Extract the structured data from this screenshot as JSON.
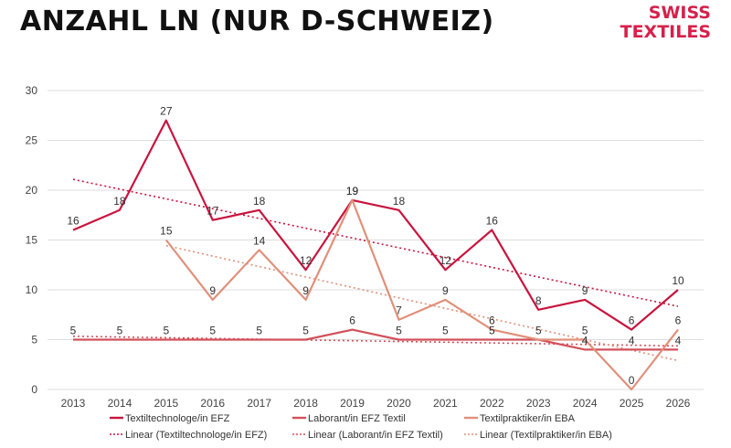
{
  "page": {
    "title": "ANZAHL LN (NUR D-SCHWEIZ)",
    "brand_line1": "SWISS",
    "brand_line2": "TEXTILES",
    "brand_color": "#d6204a"
  },
  "chart_data": {
    "type": "line",
    "title": "",
    "xlabel": "",
    "ylabel": "",
    "ylim": [
      0,
      30
    ],
    "yticks": [
      0,
      5,
      10,
      15,
      20,
      25,
      30
    ],
    "grid": true,
    "legend_position": "bottom",
    "categories": [
      "2013",
      "2014",
      "2015",
      "2016",
      "2017",
      "2018",
      "2019",
      "2020",
      "2021",
      "2022",
      "2023",
      "2024",
      "2025",
      "2026"
    ],
    "series": [
      {
        "name": "Textiltechnologe/in EFZ",
        "color": "#c8143e",
        "values": [
          16,
          18,
          27,
          17,
          18,
          12,
          19,
          18,
          12,
          16,
          8,
          9,
          6,
          10
        ],
        "trend_name": "Linear (Textiltechnologe/in EFZ)"
      },
      {
        "name": "Laborant/in EFZ Textil",
        "color": "#d2505a",
        "values": [
          5,
          5,
          5,
          5,
          5,
          5,
          6,
          5,
          5,
          5,
          5,
          4,
          4,
          4
        ],
        "trend_name": "Linear (Laborant/in EFZ Textil)"
      },
      {
        "name": "Textilpraktiker/in EBA",
        "color": "#e0907a",
        "values": [
          null,
          null,
          15,
          9,
          14,
          9,
          19,
          7,
          9,
          6,
          5,
          5,
          0,
          6
        ],
        "trend_name": "Linear (Textilpraktiker/in EBA)"
      }
    ],
    "data_labels": [
      {
        "text": "16",
        "x": "2013",
        "y": 16
      },
      {
        "text": "18",
        "x": "2014",
        "y": 18
      },
      {
        "text": "27",
        "x": "2015",
        "y": 27
      },
      {
        "text": "17",
        "x": "2016",
        "y": 17
      },
      {
        "text": "18",
        "x": "2017",
        "y": 18
      },
      {
        "text": "12",
        "x": "2018",
        "y": 12
      },
      {
        "text": "19",
        "x": "2019",
        "y": 19
      },
      {
        "text": "18",
        "x": "2020",
        "y": 18
      },
      {
        "text": "12",
        "x": "2021",
        "y": 12
      },
      {
        "text": "16",
        "x": "2022",
        "y": 16
      },
      {
        "text": "8",
        "x": "2023",
        "y": 8
      },
      {
        "text": "9",
        "x": "2024",
        "y": 9
      },
      {
        "text": "6",
        "x": "2025",
        "y": 6
      },
      {
        "text": "10",
        "x": "2026",
        "y": 10
      },
      {
        "text": "5",
        "x": "2013",
        "y": 5
      },
      {
        "text": "5",
        "x": "2014",
        "y": 5
      },
      {
        "text": "5",
        "x": "2015",
        "y": 5
      },
      {
        "text": "5",
        "x": "2016",
        "y": 5
      },
      {
        "text": "5",
        "x": "2017",
        "y": 5
      },
      {
        "text": "5",
        "x": "2018",
        "y": 5
      },
      {
        "text": "6",
        "x": "2019",
        "y": 6
      },
      {
        "text": "5",
        "x": "2020",
        "y": 5
      },
      {
        "text": "5",
        "x": "2021",
        "y": 5
      },
      {
        "text": "5",
        "x": "2022",
        "y": 5
      },
      {
        "text": "5",
        "x": "2023",
        "y": 5
      },
      {
        "text": "4",
        "x": "2024",
        "y": 4
      },
      {
        "text": "4",
        "x": "2025",
        "y": 4
      },
      {
        "text": "4",
        "x": "2026",
        "y": 4
      },
      {
        "text": "15",
        "x": "2015",
        "y": 15
      },
      {
        "text": "9",
        "x": "2016",
        "y": 9
      },
      {
        "text": "14",
        "x": "2017",
        "y": 14
      },
      {
        "text": "9",
        "x": "2018",
        "y": 9
      },
      {
        "text": "19",
        "x": "2019",
        "y": 19
      },
      {
        "text": "7",
        "x": "2020",
        "y": 7
      },
      {
        "text": "9",
        "x": "2021",
        "y": 9
      },
      {
        "text": "6",
        "x": "2022",
        "y": 6
      },
      {
        "text": "5",
        "x": "2024",
        "y": 5
      },
      {
        "text": "0",
        "x": "2025",
        "y": 0
      },
      {
        "text": "6",
        "x": "2026",
        "y": 6
      }
    ]
  }
}
